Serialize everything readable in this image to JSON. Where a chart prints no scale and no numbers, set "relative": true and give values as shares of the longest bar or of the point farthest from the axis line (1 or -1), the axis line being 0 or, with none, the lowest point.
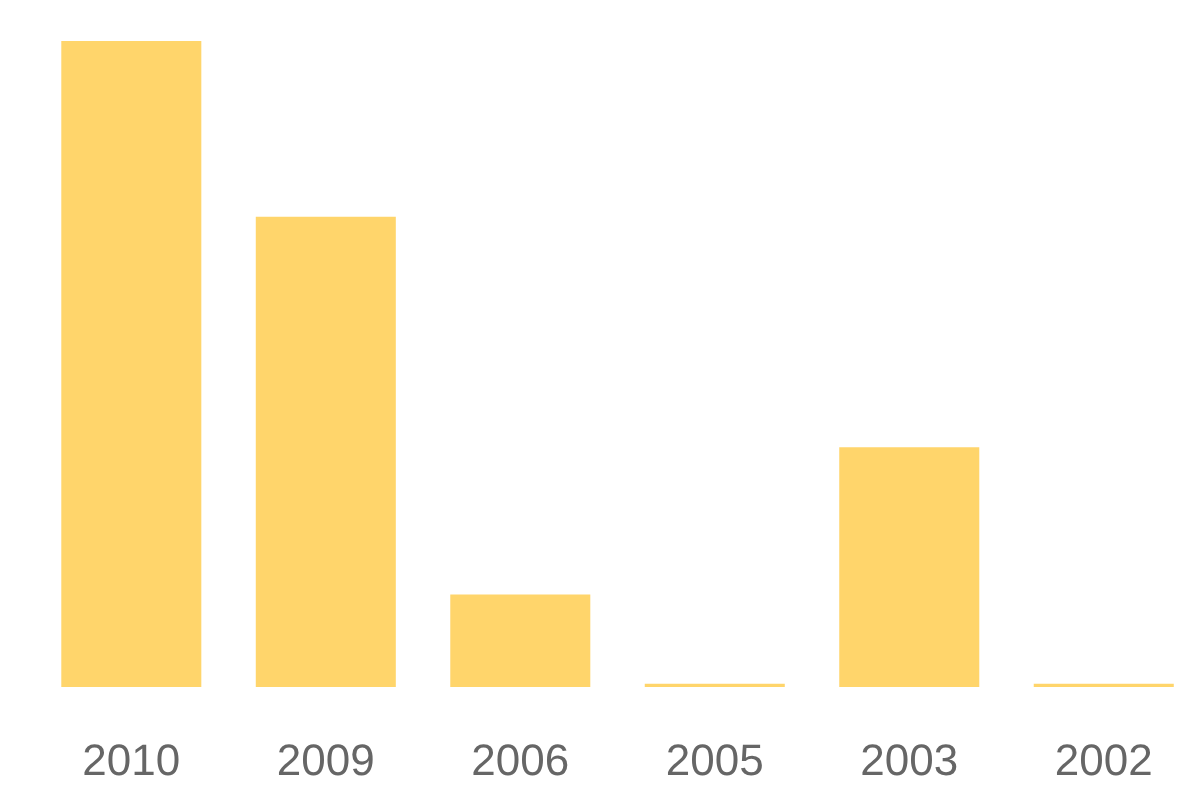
{
  "chart_data": {
    "type": "bar",
    "categories": [
      "2010",
      "2009",
      "2006",
      "2005",
      "2003",
      "2002"
    ],
    "values": [
      1,
      0.728,
      0.143,
      0.005,
      0.371,
      0.005
    ],
    "color": "#ffd56b",
    "relative": true
  }
}
